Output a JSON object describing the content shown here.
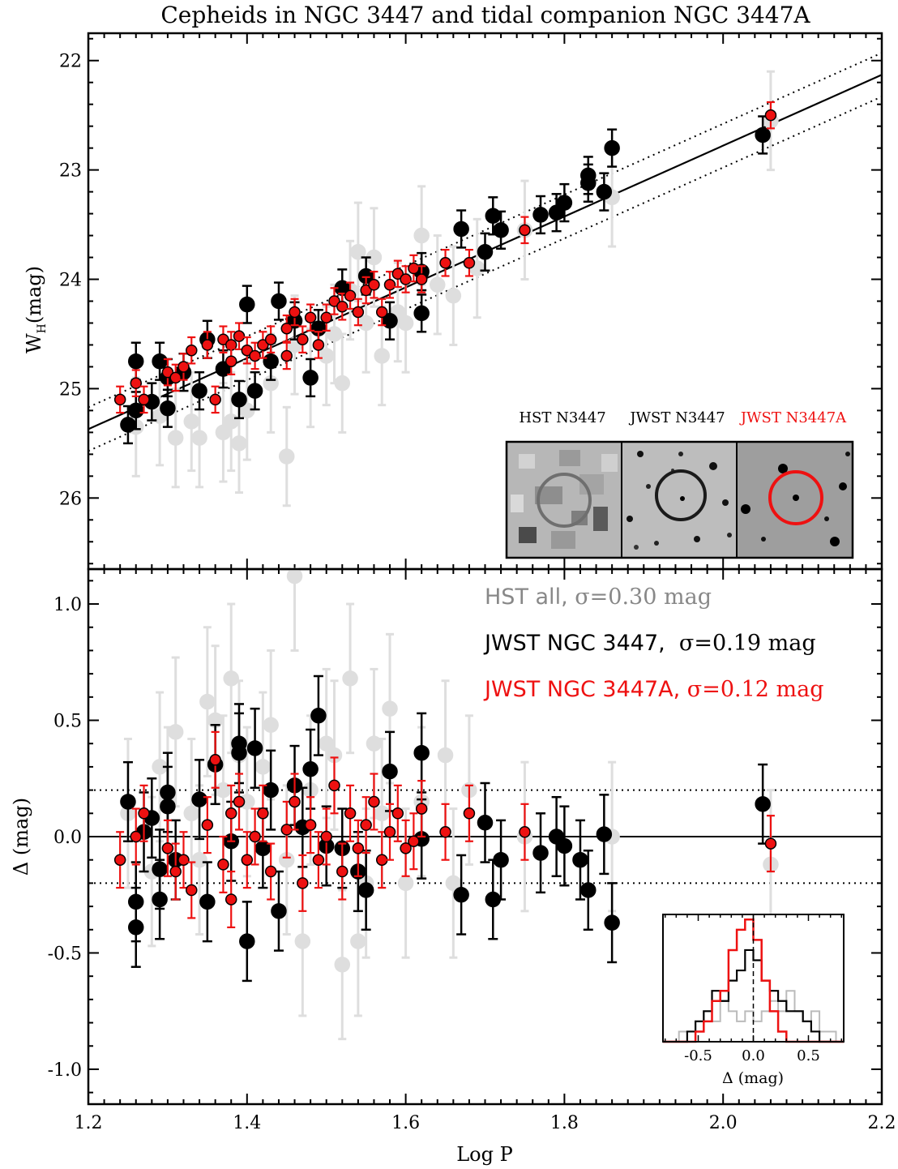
{
  "title": "Cepheids in NGC 3447 and tidal companion NGC 3447A",
  "colors": {
    "hst": "#dedede",
    "jwst": "#000000",
    "jwst_a": "#ee1111",
    "hst_text": "#777777"
  },
  "chart_data": [
    {
      "type": "scatter",
      "panel": "top",
      "xlabel": "Log P",
      "ylabel_main": "W",
      "ylabel_sub": "H",
      "ylabel_unit": "(mag)",
      "xlim": [
        1.2,
        2.2
      ],
      "ylim": [
        26.65,
        21.75
      ],
      "y_inverted": true,
      "yticks": [
        22,
        23,
        24,
        25,
        26
      ],
      "ytick_labels": [
        "22",
        "23",
        "24",
        "25",
        "26"
      ],
      "fit_line": {
        "x": [
          1.2,
          2.2
        ],
        "y": [
          25.37,
          22.13
        ]
      },
      "dotted_band_offsets": [
        -0.2,
        0.2
      ],
      "inset_labels": [
        "HST N3447",
        "JWST N3447",
        "JWST N3447A"
      ],
      "series": [
        {
          "name": "HST all",
          "points": [
            [
              1.26,
              25.35
            ],
            [
              1.29,
              25.25
            ],
            [
              1.31,
              25.45
            ],
            [
              1.33,
              25.3
            ],
            [
              1.34,
              25.45
            ],
            [
              1.37,
              25.4
            ],
            [
              1.38,
              25.3
            ],
            [
              1.39,
              25.5
            ],
            [
              1.4,
              25.2
            ],
            [
              1.43,
              24.95
            ],
            [
              1.45,
              25.62
            ],
            [
              1.46,
              24.6
            ],
            [
              1.48,
              24.9
            ],
            [
              1.5,
              24.7
            ],
            [
              1.51,
              24.5
            ],
            [
              1.52,
              24.95
            ],
            [
              1.53,
              24.1
            ],
            [
              1.54,
              23.75
            ],
            [
              1.55,
              24.4
            ],
            [
              1.56,
              23.8
            ],
            [
              1.57,
              24.7
            ],
            [
              1.59,
              24.3
            ],
            [
              1.6,
              24.4
            ],
            [
              1.62,
              23.6
            ],
            [
              1.64,
              24.05
            ],
            [
              1.66,
              24.15
            ],
            [
              1.69,
              23.9
            ],
            [
              1.75,
              23.55
            ],
            [
              1.86,
              23.25
            ],
            [
              2.06,
              22.55
            ]
          ],
          "err": 0.45
        },
        {
          "name": "JWST NGC 3447",
          "points": [
            [
              1.25,
              25.33
            ],
            [
              1.26,
              24.75
            ],
            [
              1.26,
              25.2
            ],
            [
              1.28,
              25.12
            ],
            [
              1.29,
              24.75
            ],
            [
              1.3,
              25.18
            ],
            [
              1.3,
              24.9
            ],
            [
              1.32,
              24.85
            ],
            [
              1.34,
              25.02
            ],
            [
              1.35,
              24.55
            ],
            [
              1.37,
              24.82
            ],
            [
              1.39,
              25.1
            ],
            [
              1.4,
              24.23
            ],
            [
              1.41,
              25.02
            ],
            [
              1.43,
              24.75
            ],
            [
              1.44,
              24.2
            ],
            [
              1.46,
              24.38
            ],
            [
              1.48,
              24.9
            ],
            [
              1.49,
              24.45
            ],
            [
              1.52,
              24.08
            ],
            [
              1.55,
              23.97
            ],
            [
              1.58,
              24.38
            ],
            [
              1.62,
              23.93
            ],
            [
              1.62,
              24.31
            ],
            [
              1.67,
              23.54
            ],
            [
              1.7,
              23.75
            ],
            [
              1.71,
              23.42
            ],
            [
              1.72,
              23.55
            ],
            [
              1.77,
              23.41
            ],
            [
              1.79,
              23.39
            ],
            [
              1.8,
              23.3
            ],
            [
              1.83,
              23.12
            ],
            [
              1.83,
              23.05
            ],
            [
              1.85,
              23.2
            ],
            [
              1.86,
              22.8
            ],
            [
              2.05,
              22.68
            ]
          ],
          "err": 0.17
        },
        {
          "name": "JWST NGC 3447A",
          "points": [
            [
              1.24,
              25.1
            ],
            [
              1.26,
              24.95
            ],
            [
              1.27,
              25.1
            ],
            [
              1.3,
              24.85
            ],
            [
              1.31,
              24.9
            ],
            [
              1.32,
              24.8
            ],
            [
              1.33,
              24.65
            ],
            [
              1.35,
              24.6
            ],
            [
              1.36,
              25.1
            ],
            [
              1.37,
              24.55
            ],
            [
              1.38,
              24.6
            ],
            [
              1.38,
              24.75
            ],
            [
              1.39,
              24.52
            ],
            [
              1.4,
              24.65
            ],
            [
              1.41,
              24.7
            ],
            [
              1.42,
              24.6
            ],
            [
              1.43,
              24.55
            ],
            [
              1.45,
              24.45
            ],
            [
              1.45,
              24.7
            ],
            [
              1.46,
              24.3
            ],
            [
              1.47,
              24.55
            ],
            [
              1.48,
              24.35
            ],
            [
              1.49,
              24.6
            ],
            [
              1.5,
              24.35
            ],
            [
              1.51,
              24.2
            ],
            [
              1.52,
              24.25
            ],
            [
              1.53,
              24.15
            ],
            [
              1.54,
              24.3
            ],
            [
              1.55,
              24.1
            ],
            [
              1.56,
              24.05
            ],
            [
              1.57,
              24.3
            ],
            [
              1.58,
              24.05
            ],
            [
              1.59,
              23.95
            ],
            [
              1.6,
              24.0
            ],
            [
              1.61,
              23.9
            ],
            [
              1.62,
              24.0
            ],
            [
              1.65,
              23.85
            ],
            [
              1.68,
              23.85
            ],
            [
              1.75,
              23.55
            ],
            [
              2.06,
              22.5
            ]
          ],
          "err": 0.12
        }
      ]
    },
    {
      "type": "scatter",
      "panel": "bottom",
      "xlabel": "Log P",
      "ylabel": "Δ (mag)",
      "xlim": [
        1.2,
        2.2
      ],
      "ylim": [
        -1.15,
        1.15
      ],
      "xticks": [
        1.2,
        1.4,
        1.6,
        1.8,
        2.0,
        2.2
      ],
      "xtick_labels": [
        "1.2",
        "1.4",
        "1.6",
        "1.8",
        "2.0",
        "2.2"
      ],
      "yticks": [
        -1.0,
        -0.5,
        0.0,
        0.5,
        1.0
      ],
      "ytick_labels": [
        "-1.0",
        "-0.5",
        "0.0",
        "0.5",
        "1.0"
      ],
      "reference_lines": [
        0.0,
        0.2,
        -0.2
      ],
      "legend": {
        "hst_prefix": "HST all, ",
        "hst_sigma": "σ=0.30 mag",
        "jwst_prefix": "JWST NGC 3447,  ",
        "jwst_sigma": "σ=0.19 mag",
        "jwsta_prefix": "JWST NGC 3447A, ",
        "jwsta_sigma": "σ=0.12 mag"
      },
      "series": [
        {
          "name": "HST all",
          "points": [
            [
              1.25,
              0.1
            ],
            [
              1.28,
              -0.15
            ],
            [
              1.29,
              0.3
            ],
            [
              1.3,
              0.15
            ],
            [
              1.31,
              0.45
            ],
            [
              1.33,
              0.1
            ],
            [
              1.34,
              -0.1
            ],
            [
              1.35,
              0.58
            ],
            [
              1.36,
              0.5
            ],
            [
              1.37,
              0.2
            ],
            [
              1.38,
              0.68
            ],
            [
              1.39,
              0.35
            ],
            [
              1.4,
              0.15
            ],
            [
              1.42,
              0.3
            ],
            [
              1.43,
              0.48
            ],
            [
              1.45,
              -0.1
            ],
            [
              1.46,
              1.12
            ],
            [
              1.47,
              -0.45
            ],
            [
              1.48,
              0.2
            ],
            [
              1.5,
              0.4
            ],
            [
              1.51,
              0.35
            ],
            [
              1.52,
              -0.55
            ],
            [
              1.53,
              0.68
            ],
            [
              1.54,
              -0.45
            ],
            [
              1.55,
              -0.2
            ],
            [
              1.56,
              0.4
            ],
            [
              1.57,
              0.1
            ],
            [
              1.58,
              0.55
            ],
            [
              1.6,
              -0.2
            ],
            [
              1.62,
              0.15
            ],
            [
              1.65,
              0.35
            ],
            [
              1.66,
              -0.2
            ],
            [
              1.68,
              0.2
            ],
            [
              1.75,
              0.0
            ],
            [
              1.86,
              0.0
            ],
            [
              2.06,
              -0.12
            ]
          ],
          "err": 0.32
        },
        {
          "name": "JWST NGC 3447",
          "points": [
            [
              1.25,
              0.15
            ],
            [
              1.26,
              -0.39
            ],
            [
              1.26,
              -0.28
            ],
            [
              1.27,
              0.02
            ],
            [
              1.28,
              0.08
            ],
            [
              1.29,
              -0.27
            ],
            [
              1.29,
              -0.14
            ],
            [
              1.3,
              0.19
            ],
            [
              1.3,
              0.13
            ],
            [
              1.31,
              -0.1
            ],
            [
              1.34,
              0.16
            ],
            [
              1.35,
              -0.28
            ],
            [
              1.36,
              0.31
            ],
            [
              1.38,
              -0.02
            ],
            [
              1.39,
              0.36
            ],
            [
              1.39,
              0.4
            ],
            [
              1.4,
              -0.45
            ],
            [
              1.41,
              0.38
            ],
            [
              1.42,
              -0.05
            ],
            [
              1.43,
              0.2
            ],
            [
              1.44,
              -0.32
            ],
            [
              1.46,
              0.22
            ],
            [
              1.47,
              0.04
            ],
            [
              1.48,
              0.29
            ],
            [
              1.49,
              0.52
            ],
            [
              1.5,
              -0.04
            ],
            [
              1.52,
              -0.05
            ],
            [
              1.54,
              -0.15
            ],
            [
              1.55,
              -0.23
            ],
            [
              1.58,
              0.28
            ],
            [
              1.62,
              0.36
            ],
            [
              1.62,
              -0.01
            ],
            [
              1.67,
              -0.25
            ],
            [
              1.7,
              0.06
            ],
            [
              1.71,
              -0.27
            ],
            [
              1.72,
              -0.1
            ],
            [
              1.77,
              -0.07
            ],
            [
              1.79,
              0.0
            ],
            [
              1.8,
              -0.04
            ],
            [
              1.82,
              -0.1
            ],
            [
              1.83,
              -0.23
            ],
            [
              1.85,
              0.01
            ],
            [
              1.86,
              -0.37
            ],
            [
              2.05,
              0.14
            ]
          ],
          "err": 0.17
        },
        {
          "name": "JWST NGC 3447A",
          "points": [
            [
              1.24,
              -0.1
            ],
            [
              1.26,
              0.0
            ],
            [
              1.27,
              0.1
            ],
            [
              1.3,
              -0.05
            ],
            [
              1.31,
              -0.15
            ],
            [
              1.32,
              -0.1
            ],
            [
              1.33,
              -0.23
            ],
            [
              1.35,
              0.05
            ],
            [
              1.36,
              0.33
            ],
            [
              1.37,
              -0.12
            ],
            [
              1.38,
              0.1
            ],
            [
              1.38,
              -0.27
            ],
            [
              1.39,
              0.15
            ],
            [
              1.4,
              -0.1
            ],
            [
              1.41,
              0.0
            ],
            [
              1.42,
              0.1
            ],
            [
              1.43,
              -0.15
            ],
            [
              1.45,
              0.03
            ],
            [
              1.46,
              0.15
            ],
            [
              1.47,
              -0.2
            ],
            [
              1.48,
              0.05
            ],
            [
              1.49,
              -0.1
            ],
            [
              1.5,
              0.0
            ],
            [
              1.51,
              0.22
            ],
            [
              1.52,
              -0.15
            ],
            [
              1.53,
              0.1
            ],
            [
              1.54,
              -0.05
            ],
            [
              1.55,
              0.05
            ],
            [
              1.56,
              0.15
            ],
            [
              1.57,
              -0.1
            ],
            [
              1.58,
              0.02
            ],
            [
              1.59,
              0.1
            ],
            [
              1.6,
              -0.05
            ],
            [
              1.61,
              -0.02
            ],
            [
              1.62,
              0.12
            ],
            [
              1.65,
              0.02
            ],
            [
              1.68,
              0.1
            ],
            [
              1.75,
              0.02
            ],
            [
              2.06,
              -0.03
            ]
          ],
          "err": 0.12
        }
      ],
      "histogram": {
        "xlabel": "Δ (mag)",
        "xlim": [
          -0.82,
          0.82
        ],
        "xticks": [
          -0.5,
          0.0,
          0.5
        ],
        "xtick_labels": [
          "-0.5",
          "0.0",
          "0.5"
        ],
        "bin_edges": [
          -0.75,
          -0.675,
          -0.6,
          -0.525,
          -0.45,
          -0.375,
          -0.3,
          -0.225,
          -0.15,
          -0.075,
          0.0,
          0.075,
          0.15,
          0.225,
          0.3,
          0.375,
          0.45,
          0.525,
          0.6,
          0.675,
          0.75
        ],
        "hst_counts": [
          0,
          1,
          0,
          2,
          3,
          2,
          4,
          3,
          2,
          3,
          2,
          3,
          4,
          3,
          5,
          3,
          2,
          3,
          1,
          1
        ],
        "jwst_counts": [
          0,
          0,
          1,
          2,
          3,
          5,
          4,
          6,
          7,
          9,
          8,
          6,
          5,
          4,
          3,
          3,
          2,
          1,
          0,
          0
        ],
        "jwsta_counts": [
          0,
          0,
          0,
          1,
          2,
          4,
          5,
          9,
          11,
          12,
          10,
          6,
          3,
          1,
          0,
          0,
          0,
          0,
          0,
          0
        ]
      }
    }
  ]
}
